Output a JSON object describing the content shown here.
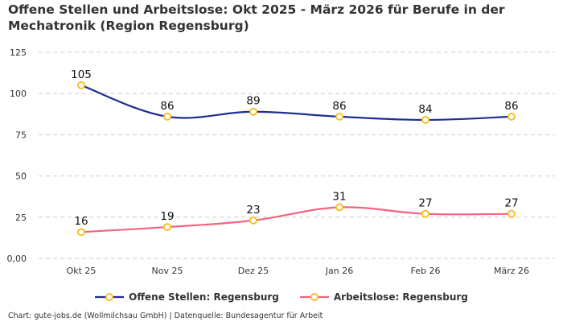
{
  "title": "Offene Stellen und Arbeitslose: Okt 2025 - März 2026 für Berufe in der Mechatronik (Region Regensburg)",
  "footer": "Chart: gute-jobs.de (Wollmilchsau GmbH) | Datenquelle: Bundesagentur für Arbeit",
  "chart_data": {
    "type": "line",
    "title": "Offene Stellen und Arbeitslose: Okt 2025 - März 2026 für Berufe in der Mechatronik (Region Regensburg)",
    "categories": [
      "Okt 25",
      "Nov 25",
      "Dez 25",
      "Jan 26",
      "Feb 26",
      "März 26"
    ],
    "ylim": [
      0,
      125
    ],
    "yticks": [
      0,
      25,
      50,
      75,
      100,
      125
    ],
    "ytick_labels": [
      "0,00",
      "25",
      "50",
      "75",
      "100",
      "125"
    ],
    "grid": true,
    "legend_position": "bottom",
    "marker_color": "#f5c02c",
    "series": [
      {
        "name": "Offene Stellen: Regensburg",
        "color": "#1f2e8f",
        "values": [
          105,
          86,
          89,
          86,
          84,
          86
        ]
      },
      {
        "name": "Arbeitslose: Regensburg",
        "color": "#f5637e",
        "values": [
          16,
          19,
          23,
          31,
          27,
          27
        ]
      }
    ]
  }
}
